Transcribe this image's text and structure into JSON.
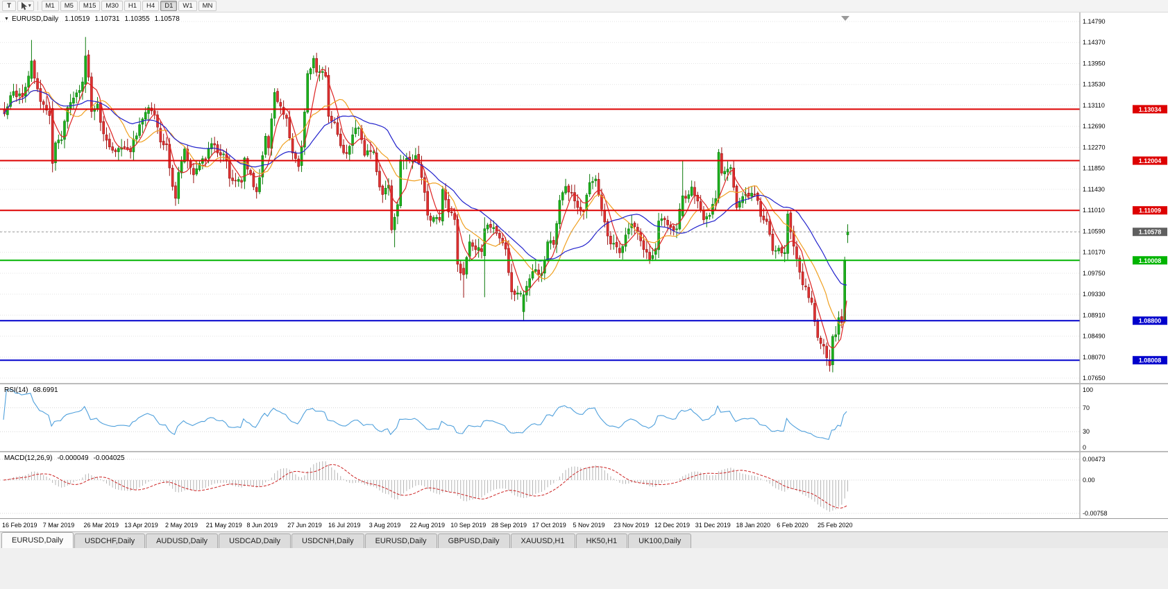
{
  "toolbar": {
    "text_tool_label": "T",
    "timeframes": [
      "M1",
      "M5",
      "M15",
      "M30",
      "H1",
      "H4",
      "D1",
      "W1",
      "MN"
    ],
    "active_timeframe": "D1"
  },
  "chart": {
    "info": {
      "symbol": "EURUSD,Daily",
      "open": "1.10519",
      "high": "1.10731",
      "low": "1.10355",
      "close": "1.10578"
    }
  },
  "indicators": {
    "rsi": {
      "title": "RSI(14)",
      "value": "68.6991",
      "period": 14,
      "scale": [
        "100",
        "70",
        "30",
        "0"
      ],
      "levels": [
        70,
        30
      ],
      "color": "#4fa0dc"
    },
    "macd": {
      "title": "MACD(12,26,9)",
      "value_main": "-0.000049",
      "value_signal": "-0.004025",
      "fast": 12,
      "slow": 26,
      "signal": 9,
      "scale": [
        "0.00473",
        "0.00",
        "-0.00758"
      ],
      "range_max": 0.00473,
      "range_min": -0.00758,
      "histogram_color": "#b4b4b4",
      "signal_color": "#cc2222"
    }
  },
  "tabs": [
    {
      "label": "EURUSD,Daily",
      "active": true
    },
    {
      "label": "USDCHF,Daily",
      "active": false
    },
    {
      "label": "AUDUSD,Daily",
      "active": false
    },
    {
      "label": "USDCAD,Daily",
      "active": false
    },
    {
      "label": "USDCNH,Daily",
      "active": false
    },
    {
      "label": "EURUSD,Daily",
      "active": false
    },
    {
      "label": "GBPUSD,Daily",
      "active": false
    },
    {
      "label": "XAUUSD,H1",
      "active": false
    },
    {
      "label": "HK50,H1",
      "active": false
    },
    {
      "label": "UK100,Daily",
      "active": false
    }
  ],
  "chart_data": {
    "type": "candlestick",
    "symbol": "EURUSD",
    "period": "Daily",
    "bars": 282,
    "price_axis_ticks": [
      "1.14790",
      "1.14370",
      "1.13950",
      "1.13530",
      "1.13110",
      "1.12690",
      "1.12270",
      "1.11850",
      "1.11430",
      "1.11010",
      "1.10590",
      "1.10170",
      "1.09750",
      "1.09330",
      "1.08910",
      "1.08490",
      "1.08070",
      "1.07650"
    ],
    "current_price": {
      "value": 1.10578,
      "label": "1.10578",
      "tag_color": "#5f5f5f"
    },
    "horizontal_lines": [
      {
        "price": 1.13034,
        "label": "1.13034",
        "color": "#dd0000",
        "width": 2
      },
      {
        "price": 1.12004,
        "label": "1.12004",
        "color": "#dd0000",
        "width": 2
      },
      {
        "price": 1.11009,
        "label": "1.11009",
        "color": "#dd0000",
        "width": 2
      },
      {
        "price": 1.10008,
        "label": "1.10008",
        "color": "#00b400",
        "width": 2
      },
      {
        "price": 1.088,
        "label": "1.08800",
        "color": "#0000cc",
        "width": 2
      },
      {
        "price": 1.08008,
        "label": "1.08008",
        "color": "#0000cc",
        "width": 2
      }
    ],
    "date_labels": [
      "16 Feb 2019",
      "7 Mar 2019",
      "26 Mar 2019",
      "13 Apr 2019",
      "2 May 2019",
      "21 May 2019",
      "8 Jun 2019",
      "27 Jun 2019",
      "16 Jul 2019",
      "3 Aug 2019",
      "22 Aug 2019",
      "10 Sep 2019",
      "28 Sep 2019",
      "17 Oct 2019",
      "5 Nov 2019",
      "23 Nov 2019",
      "12 Dec 2019",
      "31 Dec 2019",
      "18 Jan 2020",
      "6 Feb 2020",
      "25 Feb 2020"
    ],
    "up_color": "#1cb21c",
    "up_border": "#0b7a0b",
    "down_color": "#e03232",
    "down_border": "#991111",
    "moving_averages": [
      {
        "type": "sma",
        "period": 6,
        "color": "#dd2222"
      },
      {
        "type": "sma",
        "period": 14,
        "color": "#f0a020"
      },
      {
        "type": "sma",
        "period": 28,
        "color": "#2121cc"
      }
    ],
    "noise": 0.0013,
    "price_anchors": [
      [
        0,
        1.13
      ],
      [
        3,
        1.134
      ],
      [
        6,
        1.1322
      ],
      [
        8,
        1.1372
      ],
      [
        9,
        1.14
      ],
      [
        10,
        1.1368
      ],
      [
        12,
        1.1322
      ],
      [
        14,
        1.1303
      ],
      [
        15,
        1.1295
      ],
      [
        16,
        1.1195
      ],
      [
        17,
        1.1232
      ],
      [
        19,
        1.1248
      ],
      [
        21,
        1.1302
      ],
      [
        23,
        1.1326
      ],
      [
        25,
        1.1342
      ],
      [
        26,
        1.1352
      ],
      [
        27,
        1.141
      ],
      [
        28,
        1.1372
      ],
      [
        29,
        1.1302
      ],
      [
        31,
        1.1312
      ],
      [
        33,
        1.1248
      ],
      [
        35,
        1.1222
      ],
      [
        37,
        1.1212
      ],
      [
        39,
        1.1232
      ],
      [
        42,
        1.1222
      ],
      [
        44,
        1.1256
      ],
      [
        46,
        1.1282
      ],
      [
        48,
        1.1302
      ],
      [
        50,
        1.1292
      ],
      [
        52,
        1.1242
      ],
      [
        54,
        1.1232
      ],
      [
        56,
        1.1152
      ],
      [
        57,
        1.1125
      ],
      [
        58,
        1.1177
      ],
      [
        60,
        1.1222
      ],
      [
        61,
        1.1202
      ],
      [
        63,
        1.1172
      ],
      [
        65,
        1.1196
      ],
      [
        67,
        1.1206
      ],
      [
        69,
        1.1232
      ],
      [
        71,
        1.1222
      ],
      [
        74,
        1.1202
      ],
      [
        75,
        1.1162
      ],
      [
        77,
        1.1166
      ],
      [
        79,
        1.1152
      ],
      [
        80,
        1.1202
      ],
      [
        82,
        1.1172
      ],
      [
        84,
        1.1132
      ],
      [
        85,
        1.117
      ],
      [
        87,
        1.1252
      ],
      [
        88,
        1.1222
      ],
      [
        90,
        1.1335
      ],
      [
        92,
        1.1312
      ],
      [
        94,
        1.1282
      ],
      [
        96,
        1.1212
      ],
      [
        98,
        1.1195
      ],
      [
        99,
        1.1226
      ],
      [
        100,
        1.1295
      ],
      [
        101,
        1.1369
      ],
      [
        103,
        1.1399
      ],
      [
        104,
        1.1372
      ],
      [
        106,
        1.1382
      ],
      [
        107,
        1.1373
      ],
      [
        108,
        1.1286
      ],
      [
        110,
        1.1282
      ],
      [
        112,
        1.1228
      ],
      [
        114,
        1.1212
      ],
      [
        116,
        1.1252
      ],
      [
        118,
        1.1272
      ],
      [
        120,
        1.1212
      ],
      [
        121,
        1.1226
      ],
      [
        123,
        1.1212
      ],
      [
        125,
        1.1146
      ],
      [
        126,
        1.1128
      ],
      [
        128,
        1.1156
      ],
      [
        129,
        1.1062
      ],
      [
        130,
        1.1087
      ],
      [
        131,
        1.1108
      ],
      [
        132,
        1.1202
      ],
      [
        133,
        1.12
      ],
      [
        135,
        1.12
      ],
      [
        137,
        1.121
      ],
      [
        139,
        1.1172
      ],
      [
        141,
        1.1092
      ],
      [
        143,
        1.1082
      ],
      [
        145,
        1.1086
      ],
      [
        146,
        1.1144
      ],
      [
        148,
        1.1102
      ],
      [
        150,
        1.1078
      ],
      [
        151,
        1.0992
      ],
      [
        152,
        1.0972
      ],
      [
        153,
        1.0972
      ],
      [
        155,
        1.1035
      ],
      [
        157,
        1.1028
      ],
      [
        159,
        1.1012
      ],
      [
        160,
        1.1064
      ],
      [
        161,
        1.1073
      ],
      [
        163,
        1.107
      ],
      [
        165,
        1.1042
      ],
      [
        167,
        1.1017
      ],
      [
        169,
        1.0942
      ],
      [
        171,
        1.0932
      ],
      [
        173,
        1.0932
      ],
      [
        175,
        1.0966
      ],
      [
        177,
        1.0982
      ],
      [
        179,
        1.0972
      ],
      [
        181,
        1.104
      ],
      [
        183,
        1.1032
      ],
      [
        185,
        1.1125
      ],
      [
        187,
        1.115
      ],
      [
        189,
        1.1132
      ],
      [
        191,
        1.1106
      ],
      [
        193,
        1.1102
      ],
      [
        195,
        1.1152
      ],
      [
        197,
        1.1165
      ],
      [
        198,
        1.1128
      ],
      [
        200,
        1.1072
      ],
      [
        202,
        1.104
      ],
      [
        203,
        1.1032
      ],
      [
        205,
        1.1012
      ],
      [
        207,
        1.1052
      ],
      [
        209,
        1.1072
      ],
      [
        211,
        1.1062
      ],
      [
        213,
        1.1022
      ],
      [
        215,
        1.1002
      ],
      [
        217,
        1.1018
      ],
      [
        218,
        1.1078
      ],
      [
        220,
        1.108
      ],
      [
        222,
        1.1062
      ],
      [
        224,
        1.1066
      ],
      [
        226,
        1.1131
      ],
      [
        227,
        1.1122
      ],
      [
        229,
        1.1146
      ],
      [
        231,
        1.1122
      ],
      [
        233,
        1.1088
      ],
      [
        235,
        1.1092
      ],
      [
        237,
        1.1122
      ],
      [
        238,
        1.1212
      ],
      [
        239,
        1.1172
      ],
      [
        242,
        1.1192
      ],
      [
        244,
        1.1112
      ],
      [
        246,
        1.1122
      ],
      [
        248,
        1.1134
      ],
      [
        250,
        1.1138
      ],
      [
        252,
        1.1092
      ],
      [
        254,
        1.1082
      ],
      [
        256,
        1.1026
      ],
      [
        258,
        1.1022
      ],
      [
        260,
        1.1012
      ],
      [
        261,
        1.1092
      ],
      [
        262,
        1.1062
      ],
      [
        264,
        1.1002
      ],
      [
        266,
        1.0948
      ],
      [
        267,
        1.0945
      ],
      [
        269,
        1.0917
      ],
      [
        271,
        1.0842
      ],
      [
        273,
        1.0832
      ],
      [
        274,
        1.0802
      ],
      [
        275,
        1.079
      ],
      [
        276,
        1.0846
      ],
      [
        277,
        1.0854
      ],
      [
        278,
        1.088
      ],
      [
        279,
        1.0881
      ],
      [
        280,
        1.1
      ],
      [
        281,
        1.10578
      ]
    ],
    "ohlc_overrides": {
      "9": [
        1.1365,
        1.1442,
        1.1358,
        1.14
      ],
      "16": [
        1.1305,
        1.132,
        1.1177,
        1.1195
      ],
      "27": [
        1.1353,
        1.1448,
        1.1336,
        1.141
      ],
      "57": [
        1.115,
        1.1158,
        1.111,
        1.1125
      ],
      "129": [
        1.115,
        1.1162,
        1.1055,
        1.1062
      ],
      "130": [
        1.1062,
        1.1095,
        1.1027,
        1.1087
      ],
      "132": [
        1.111,
        1.1212,
        1.1105,
        1.1202
      ],
      "153": [
        1.0985,
        1.0998,
        1.0926,
        1.0972
      ],
      "160": [
        1.101,
        1.1087,
        1.0927,
        1.1064
      ],
      "173": [
        1.0898,
        1.094,
        1.0879,
        1.0932
      ],
      "226": [
        1.109,
        1.12,
        1.1085,
        1.113
      ],
      "275": [
        1.08,
        1.0822,
        1.0778,
        1.079
      ],
      "280": [
        1.0882,
        1.1008,
        1.0875,
        1.1
      ],
      "281": [
        1.10519,
        1.10731,
        1.10355,
        1.10578
      ]
    }
  }
}
